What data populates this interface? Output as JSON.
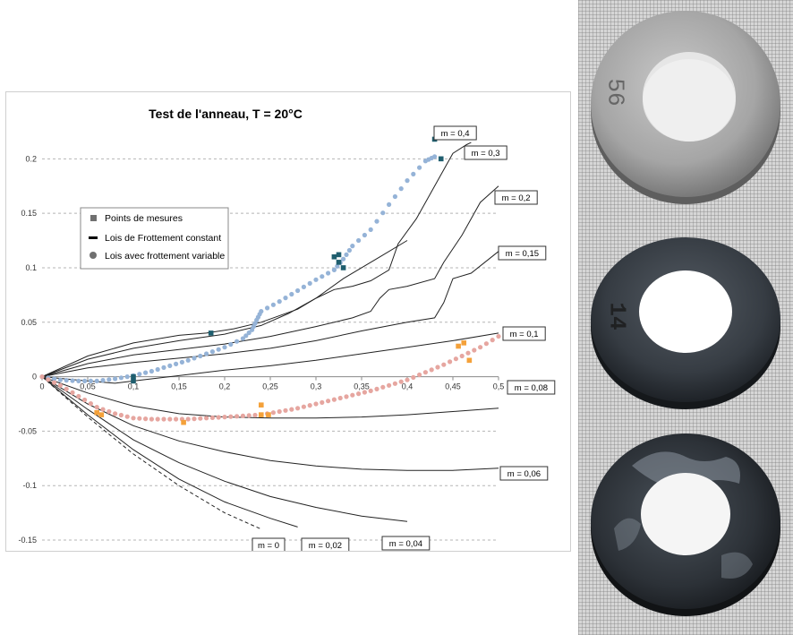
{
  "chart_data": {
    "type": "line",
    "title": "Test de l'anneau, T = 20°C",
    "xlabel": "",
    "ylabel": "",
    "xlim": [
      0,
      0.5
    ],
    "ylim": [
      -0.15,
      0.22
    ],
    "x_ticks": [
      0,
      0.05,
      0.1,
      0.15,
      0.2,
      0.25,
      0.3,
      0.35,
      0.4,
      0.45,
      0.5
    ],
    "x_tick_labels": [
      "0",
      "0,05",
      "0,1",
      "0,15",
      "0,2",
      "0,25",
      "0,3",
      "0,35",
      "0,4",
      "0,45",
      "0,5"
    ],
    "y_ticks": [
      -0.15,
      -0.1,
      -0.05,
      0,
      0.05,
      0.1,
      0.15,
      0.2
    ],
    "y_tick_labels": [
      "-0.15",
      "-0.1",
      "-0.05",
      "0",
      "0.05",
      "0.1",
      "0.15",
      "0.2"
    ],
    "grid": "horizontal dashed",
    "legend_position": "upper-left",
    "legend": [
      {
        "label": "Points de mesures",
        "marker": "square"
      },
      {
        "label": "Lois de Frottement constant",
        "marker": "line"
      },
      {
        "label": "Lois avec frottement variable",
        "marker": "circle"
      }
    ],
    "constant_friction_curves": [
      {
        "label": "m = 0,4",
        "points": [
          [
            0,
            0
          ],
          [
            0.05,
            0.019
          ],
          [
            0.1,
            0.031
          ],
          [
            0.15,
            0.038
          ],
          [
            0.18,
            0.04
          ],
          [
            0.21,
            0.044
          ],
          [
            0.24,
            0.05
          ],
          [
            0.28,
            0.062
          ],
          [
            0.3,
            0.072
          ],
          [
            0.33,
            0.09
          ],
          [
            0.37,
            0.11
          ],
          [
            0.4,
            0.125
          ]
        ]
      },
      {
        "label": "m = 0,3",
        "points": [
          [
            0,
            0
          ],
          [
            0.05,
            0.016
          ],
          [
            0.1,
            0.026
          ],
          [
            0.15,
            0.033
          ],
          [
            0.2,
            0.039
          ],
          [
            0.24,
            0.047
          ],
          [
            0.27,
            0.058
          ],
          [
            0.3,
            0.072
          ],
          [
            0.32,
            0.08
          ],
          [
            0.34,
            0.083
          ],
          [
            0.36,
            0.088
          ],
          [
            0.38,
            0.098
          ],
          [
            0.39,
            0.122
          ],
          [
            0.41,
            0.145
          ],
          [
            0.43,
            0.175
          ],
          [
            0.45,
            0.205
          ],
          [
            0.465,
            0.213
          ],
          [
            0.47,
            0.215
          ]
        ]
      },
      {
        "label": "m = 0,2",
        "points": [
          [
            0,
            0
          ],
          [
            0.05,
            0.012
          ],
          [
            0.1,
            0.02
          ],
          [
            0.15,
            0.025
          ],
          [
            0.2,
            0.03
          ],
          [
            0.25,
            0.037
          ],
          [
            0.3,
            0.046
          ],
          [
            0.34,
            0.054
          ],
          [
            0.36,
            0.06
          ],
          [
            0.37,
            0.072
          ],
          [
            0.38,
            0.08
          ],
          [
            0.4,
            0.083
          ],
          [
            0.43,
            0.09
          ],
          [
            0.44,
            0.105
          ],
          [
            0.46,
            0.13
          ],
          [
            0.48,
            0.16
          ],
          [
            0.5,
            0.175
          ]
        ]
      },
      {
        "label": "m = 0,15",
        "points": [
          [
            0,
            0
          ],
          [
            0.05,
            0.008
          ],
          [
            0.1,
            0.013
          ],
          [
            0.15,
            0.017
          ],
          [
            0.2,
            0.021
          ],
          [
            0.25,
            0.026
          ],
          [
            0.3,
            0.033
          ],
          [
            0.35,
            0.042
          ],
          [
            0.4,
            0.05
          ],
          [
            0.43,
            0.054
          ],
          [
            0.44,
            0.068
          ],
          [
            0.45,
            0.09
          ],
          [
            0.47,
            0.095
          ],
          [
            0.5,
            0.115
          ]
        ]
      },
      {
        "label": "m = 0,1",
        "points": [
          [
            0,
            0
          ],
          [
            0.05,
            -0.004
          ],
          [
            0.08,
            -0.006
          ],
          [
            0.1,
            -0.004
          ],
          [
            0.15,
            0.001
          ],
          [
            0.2,
            0.006
          ],
          [
            0.25,
            0.01
          ],
          [
            0.3,
            0.015
          ],
          [
            0.35,
            0.021
          ],
          [
            0.4,
            0.027
          ],
          [
            0.45,
            0.033
          ],
          [
            0.5,
            0.04
          ]
        ]
      },
      {
        "label": "m = 0,08",
        "points": [
          [
            0,
            0
          ],
          [
            0.05,
            -0.015
          ],
          [
            0.1,
            -0.027
          ],
          [
            0.15,
            -0.034
          ],
          [
            0.2,
            -0.037
          ],
          [
            0.25,
            -0.038
          ],
          [
            0.3,
            -0.038
          ],
          [
            0.35,
            -0.037
          ],
          [
            0.4,
            -0.035
          ],
          [
            0.45,
            -0.032
          ],
          [
            0.5,
            -0.029
          ]
        ]
      },
      {
        "label": "m = 0,06",
        "points": [
          [
            0,
            0
          ],
          [
            0.05,
            -0.025
          ],
          [
            0.1,
            -0.045
          ],
          [
            0.15,
            -0.059
          ],
          [
            0.2,
            -0.069
          ],
          [
            0.25,
            -0.077
          ],
          [
            0.3,
            -0.082
          ],
          [
            0.35,
            -0.085
          ],
          [
            0.4,
            -0.086
          ],
          [
            0.45,
            -0.086
          ],
          [
            0.5,
            -0.084
          ]
        ]
      },
      {
        "label": "m = 0,04",
        "points": [
          [
            0,
            0
          ],
          [
            0.05,
            -0.03
          ],
          [
            0.1,
            -0.058
          ],
          [
            0.15,
            -0.079
          ],
          [
            0.2,
            -0.096
          ],
          [
            0.25,
            -0.11
          ],
          [
            0.3,
            -0.12
          ],
          [
            0.35,
            -0.128
          ],
          [
            0.4,
            -0.133
          ]
        ]
      },
      {
        "label": "m = 0,02",
        "points": [
          [
            0,
            0
          ],
          [
            0.05,
            -0.035
          ],
          [
            0.1,
            -0.067
          ],
          [
            0.15,
            -0.094
          ],
          [
            0.2,
            -0.115
          ],
          [
            0.25,
            -0.13
          ],
          [
            0.28,
            -0.138
          ]
        ]
      },
      {
        "label": "m = 0",
        "dashed": true,
        "points": [
          [
            0,
            0
          ],
          [
            0.05,
            -0.037
          ],
          [
            0.1,
            -0.071
          ],
          [
            0.15,
            -0.1
          ],
          [
            0.2,
            -0.125
          ],
          [
            0.24,
            -0.14
          ]
        ]
      }
    ],
    "variable_friction_series": [
      {
        "color": "#95b3d7",
        "points": [
          [
            0,
            0
          ],
          [
            0.02,
            -0.003
          ],
          [
            0.04,
            -0.004
          ],
          [
            0.06,
            -0.004
          ],
          [
            0.08,
            -0.002
          ],
          [
            0.1,
            0.001
          ],
          [
            0.12,
            0.005
          ],
          [
            0.14,
            0.01
          ],
          [
            0.16,
            0.015
          ],
          [
            0.18,
            0.021
          ],
          [
            0.2,
            0.027
          ],
          [
            0.22,
            0.035
          ],
          [
            0.23,
            0.043
          ],
          [
            0.235,
            0.052
          ],
          [
            0.24,
            0.06
          ],
          [
            0.26,
            0.069
          ],
          [
            0.28,
            0.079
          ],
          [
            0.3,
            0.089
          ],
          [
            0.32,
            0.098
          ],
          [
            0.33,
            0.108
          ],
          [
            0.34,
            0.12
          ],
          [
            0.36,
            0.135
          ],
          [
            0.38,
            0.158
          ],
          [
            0.4,
            0.18
          ],
          [
            0.42,
            0.198
          ],
          [
            0.43,
            0.202
          ]
        ]
      },
      {
        "color": "#e6a6a0",
        "points": [
          [
            0,
            0
          ],
          [
            0.02,
            -0.008
          ],
          [
            0.04,
            -0.018
          ],
          [
            0.06,
            -0.028
          ],
          [
            0.08,
            -0.034
          ],
          [
            0.1,
            -0.038
          ],
          [
            0.12,
            -0.039
          ],
          [
            0.14,
            -0.039
          ],
          [
            0.16,
            -0.039
          ],
          [
            0.18,
            -0.038
          ],
          [
            0.2,
            -0.037
          ],
          [
            0.22,
            -0.036
          ],
          [
            0.24,
            -0.035
          ],
          [
            0.26,
            -0.032
          ],
          [
            0.28,
            -0.029
          ],
          [
            0.3,
            -0.025
          ],
          [
            0.32,
            -0.021
          ],
          [
            0.34,
            -0.017
          ],
          [
            0.36,
            -0.013
          ],
          [
            0.38,
            -0.008
          ],
          [
            0.4,
            -0.003
          ],
          [
            0.42,
            0.004
          ],
          [
            0.44,
            0.011
          ],
          [
            0.46,
            0.019
          ],
          [
            0.48,
            0.027
          ],
          [
            0.5,
            0.037
          ]
        ]
      }
    ],
    "measured_points": [
      {
        "color": "#1f5e6e",
        "points": [
          [
            0.1,
            0.0
          ],
          [
            0.1,
            -0.004
          ],
          [
            0.185,
            0.04
          ],
          [
            0.32,
            0.11
          ],
          [
            0.325,
            0.105
          ],
          [
            0.33,
            0.1
          ],
          [
            0.325,
            0.112
          ],
          [
            0.43,
            0.218
          ],
          [
            0.435,
            0.22
          ],
          [
            0.437,
            0.2
          ]
        ]
      },
      {
        "color": "#f4a13a",
        "points": [
          [
            0.06,
            -0.033
          ],
          [
            0.065,
            -0.035
          ],
          [
            0.155,
            -0.042
          ],
          [
            0.24,
            -0.026
          ],
          [
            0.24,
            -0.035
          ],
          [
            0.248,
            -0.035
          ],
          [
            0.456,
            0.028
          ],
          [
            0.462,
            0.031
          ],
          [
            0.468,
            0.015
          ]
        ]
      }
    ]
  },
  "photo": {
    "ring_stamps": [
      "56",
      "14"
    ]
  }
}
